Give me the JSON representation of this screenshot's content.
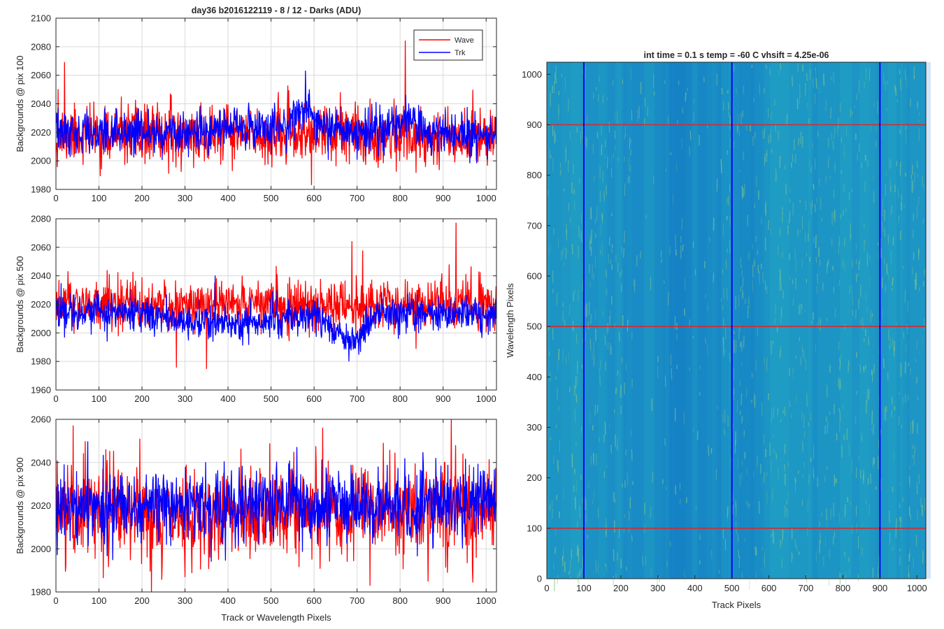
{
  "figure": {
    "background": "#ffffff",
    "wave_color": "#ff0000",
    "trk_color": "#0000ff",
    "grid_color": "#d9d9d9",
    "axis_color": "#262626"
  },
  "chart_data": [
    {
      "type": "line",
      "title": "day36 b2016122119 - 8 / 12 - Darks (ADU)",
      "xlabel": "",
      "ylabel": "Backgrounds @ pix 100",
      "xlim": [
        0,
        1024
      ],
      "ylim": [
        1980,
        2100
      ],
      "xticks": [
        0,
        100,
        200,
        300,
        400,
        500,
        600,
        700,
        800,
        900,
        1000
      ],
      "yticks": [
        1980,
        2000,
        2020,
        2040,
        2060,
        2080,
        2100
      ],
      "grid": true,
      "legend": "top-right",
      "n_points": 1024,
      "series": [
        {
          "name": "Wave",
          "color": "#ff0000",
          "baseline": 2018,
          "noise_sd": 10,
          "seed": 11,
          "spikes": [
            [
              20,
              2069
            ],
            [
              812,
              2084
            ],
            [
              5,
              2050
            ]
          ],
          "trend": []
        },
        {
          "name": "Trk",
          "color": "#0000ff",
          "baseline": 2020,
          "noise_sd": 7,
          "seed": 12,
          "spikes": [
            [
              580,
              2063
            ],
            [
              700,
              2001
            ]
          ],
          "trend": [
            [
              0,
              0
            ],
            [
              360,
              0
            ],
            [
              420,
              5
            ],
            [
              520,
              3
            ],
            [
              580,
              18
            ],
            [
              620,
              2
            ],
            [
              760,
              0
            ],
            [
              820,
              10
            ],
            [
              860,
              0
            ],
            [
              1024,
              0
            ]
          ]
        }
      ]
    },
    {
      "type": "line",
      "title": "",
      "xlabel": "",
      "ylabel": "Backgrounds @ pix 500",
      "xlim": [
        0,
        1024
      ],
      "ylim": [
        1960,
        2080
      ],
      "xticks": [
        0,
        100,
        200,
        300,
        400,
        500,
        600,
        700,
        800,
        900,
        1000
      ],
      "yticks": [
        1960,
        1980,
        2000,
        2020,
        2040,
        2060,
        2080
      ],
      "grid": true,
      "n_points": 1024,
      "series": [
        {
          "name": "Wave",
          "color": "#ff0000",
          "baseline": 2020,
          "noise_sd": 9,
          "seed": 21,
          "spikes": [
            [
              930,
              2077
            ],
            [
              280,
              1976
            ],
            [
              350,
              1975
            ],
            [
              688,
              2064
            ]
          ],
          "trend": []
        },
        {
          "name": "Trk",
          "color": "#0000ff",
          "baseline": 2013,
          "noise_sd": 6,
          "seed": 22,
          "spikes": [
            [
              370,
              2040
            ]
          ],
          "trend": [
            [
              0,
              3
            ],
            [
              200,
              0
            ],
            [
              400,
              -8
            ],
            [
              600,
              0
            ],
            [
              640,
              -10
            ],
            [
              700,
              -18
            ],
            [
              750,
              0
            ],
            [
              1024,
              0
            ]
          ]
        }
      ]
    },
    {
      "type": "line",
      "title": "",
      "xlabel": "Track or Wavelength Pixels",
      "ylabel": "Backgrounds @ pix 900",
      "xlim": [
        0,
        1024
      ],
      "ylim": [
        1980,
        2060
      ],
      "xticks": [
        0,
        100,
        200,
        300,
        400,
        500,
        600,
        700,
        800,
        900,
        1000
      ],
      "yticks": [
        1980,
        2000,
        2020,
        2040,
        2060
      ],
      "grid": true,
      "n_points": 1024,
      "series": [
        {
          "name": "Wave",
          "color": "#ff0000",
          "baseline": 2018,
          "noise_sd": 11,
          "seed": 31,
          "spikes": [
            [
              300,
              1987
            ],
            [
              40,
              2057
            ],
            [
              620,
              2056
            ]
          ],
          "trend": [
            [
              0,
              0
            ],
            [
              150,
              0
            ],
            [
              300,
              -5
            ],
            [
              400,
              0
            ],
            [
              1024,
              0
            ]
          ]
        },
        {
          "name": "Trk",
          "color": "#0000ff",
          "baseline": 2020,
          "noise_sd": 8,
          "seed": 32,
          "spikes": [
            [
              560,
              2047
            ]
          ],
          "trend": []
        }
      ]
    },
    {
      "type": "heatmap",
      "title": "int time = 0.1 s   temp = -60 C   vhsift = 4.25e-06",
      "xlabel": "Track Pixels",
      "ylabel": "Wavelength Pixels",
      "xlim": [
        0,
        1024
      ],
      "ylim": [
        0,
        1024
      ],
      "xticks": [
        0,
        100,
        200,
        300,
        400,
        500,
        600,
        700,
        800,
        900,
        1000
      ],
      "yticks": [
        0,
        100,
        200,
        300,
        400,
        500,
        600,
        700,
        800,
        900,
        1000
      ],
      "colormap": "parula",
      "base_color": "#1f9cc4",
      "streak_color": "#86c98a",
      "dark_color": "#1479c8",
      "vertical_lines": [
        100,
        500,
        900
      ],
      "vertical_line_color": "#0000ff",
      "horizontal_lines": [
        100,
        500,
        900
      ],
      "horizontal_line_color": "#d62a2a"
    }
  ]
}
